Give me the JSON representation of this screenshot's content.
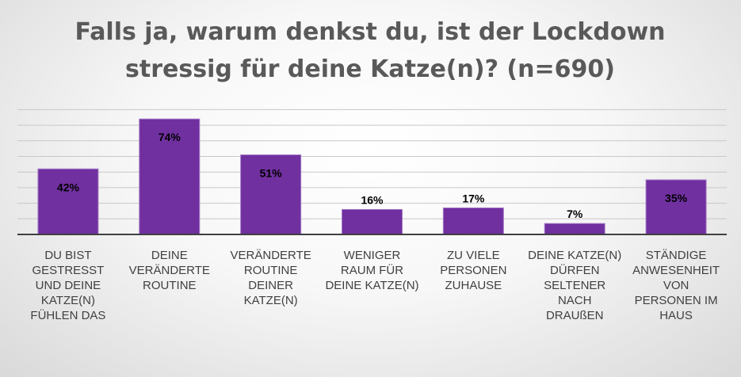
{
  "chart_data": {
    "type": "bar",
    "title": "Falls ja, warum denkst du, ist der Lockdown stressig für deine Katze(n)? (n=690)",
    "title_lines": [
      "Falls ja, warum denkst du, ist der Lockdown",
      "stressig für deine Katze(n)? (n=690)"
    ],
    "categories": [
      "DU BIST GESTRESST UND DEINE KATZE(N) FÜHLEN DAS",
      "DEINE VERÄNDERTE ROUTINE",
      "VERÄNDERTE ROUTINE DEINER KATZE(N)",
      "WENIGER RAUM FÜR DEINE KATZE(N)",
      "ZU VIELE PERSONEN ZUHAUSE",
      "DEINE KATZE(N) DÜRFEN SELTENER NACH DRAUßEN",
      "STÄNDIGE ANWESENHEIT VON PERSONEN IM HAUS"
    ],
    "category_lines": [
      [
        "DU BIST",
        "GESTRESST",
        "UND DEINE",
        "KATZE(N)",
        "FÜHLEN DAS"
      ],
      [
        "DEINE",
        "VERÄNDERTE",
        "ROUTINE"
      ],
      [
        "VERÄNDERTE",
        "ROUTINE",
        "DEINER",
        "KATZE(N)"
      ],
      [
        "WENIGER",
        "RAUM FÜR",
        "DEINE KATZE(N)"
      ],
      [
        "ZU VIELE",
        "PERSONEN",
        "ZUHAUSE"
      ],
      [
        "DEINE KATZE(N)",
        "DÜRFEN",
        "SELTENER",
        "NACH",
        "DRAUßEN"
      ],
      [
        "STÄNDIGE",
        "ANWESENHEIT",
        "VON",
        "PERSONEN IM",
        "HAUS"
      ]
    ],
    "values": [
      42,
      74,
      51,
      16,
      17,
      7,
      35
    ],
    "data_labels": [
      "42%",
      "74%",
      "51%",
      "16%",
      "17%",
      "7%",
      "35%"
    ],
    "unit": "%",
    "ylim": [
      0,
      80
    ],
    "grid": true,
    "grid_step": 10,
    "legend": "none",
    "colors": {
      "bar": "#7030a0",
      "title": "#595959",
      "category_text": "#404040"
    }
  }
}
